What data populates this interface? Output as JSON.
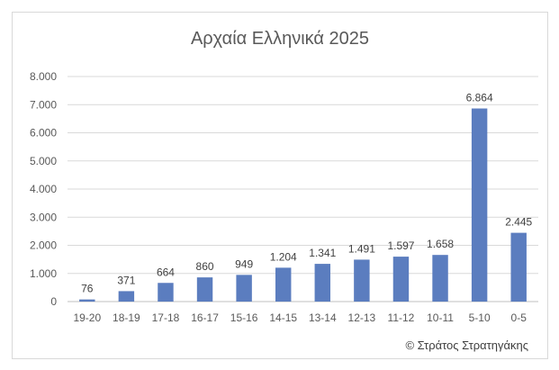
{
  "chart_data": {
    "type": "bar",
    "title": "Αρχαία Ελληνικά 2025",
    "categories": [
      "19-20",
      "18-19",
      "17-18",
      "16-17",
      "15-16",
      "14-15",
      "13-14",
      "12-13",
      "11-12",
      "10-11",
      "5-10",
      "0-5"
    ],
    "values": [
      76,
      371,
      664,
      860,
      949,
      1204,
      1341,
      1491,
      1597,
      1658,
      6864,
      2445
    ],
    "value_labels": [
      "76",
      "371",
      "664",
      "860",
      "949",
      "1.204",
      "1.341",
      "1.491",
      "1.597",
      "1.658",
      "6.864",
      "2.445"
    ],
    "ylim": [
      0,
      8000
    ],
    "yticks": [
      0,
      1000,
      2000,
      3000,
      4000,
      5000,
      6000,
      7000,
      8000
    ],
    "ytick_labels": [
      "0",
      "1.000",
      "2.000",
      "3.000",
      "4.000",
      "5.000",
      "6.000",
      "7.000",
      "8.000"
    ],
    "grid": true,
    "bar_color": "#5b7dbf"
  },
  "credit": "© Στράτος Στρατηγάκης"
}
